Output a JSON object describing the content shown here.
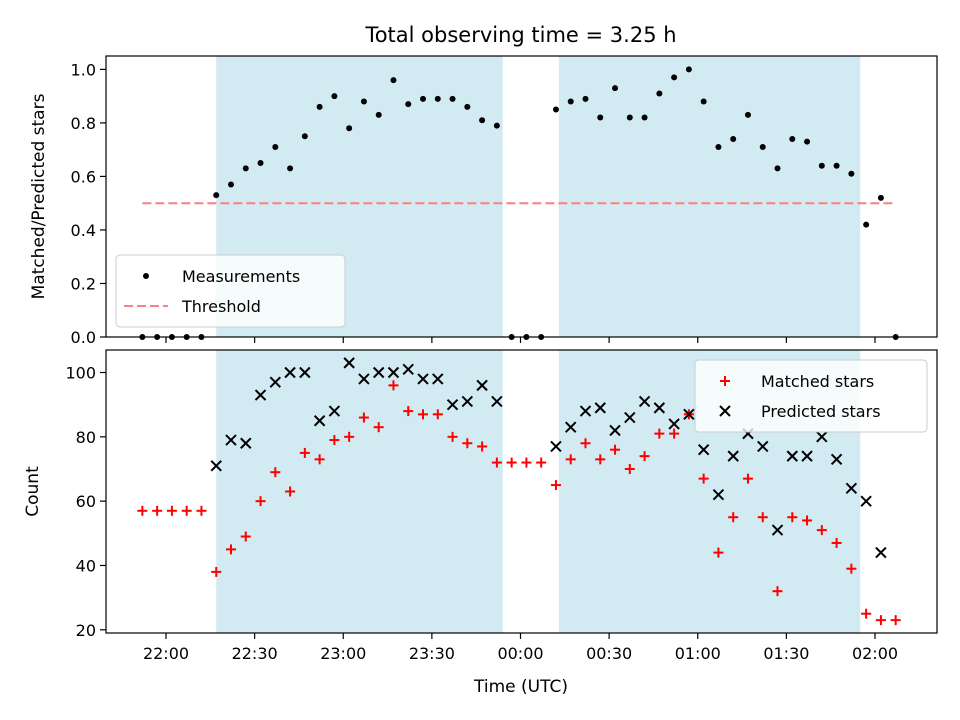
{
  "chart_data": {
    "title": "Total observing time = 3.25 h",
    "xlabel": "Time (UTC)",
    "xtick_labels": [
      "22:00",
      "22:30",
      "23:00",
      "23:30",
      "00:00",
      "00:30",
      "01:00",
      "01:30",
      "02:00"
    ],
    "shaded_intervals": [
      [
        "22:17",
        "23:54"
      ],
      [
        "00:13",
        "01:55"
      ]
    ],
    "shade_color": "#add8e6",
    "charts": [
      {
        "type": "scatter",
        "ylabel": "Matched/Predicted stars",
        "ylim": [
          0,
          1.05
        ],
        "yticks": [
          "0.0",
          "0.2",
          "0.4",
          "0.6",
          "0.8",
          "1.0"
        ],
        "legend": "lower-left",
        "series": [
          {
            "name": "Measurements",
            "marker": "dot",
            "color": "#000000",
            "points": [
              [
                "21:52",
                0
              ],
              [
                "21:57",
                0
              ],
              [
                "22:02",
                0
              ],
              [
                "22:07",
                0
              ],
              [
                "22:12",
                0
              ],
              [
                "22:17",
                0.53
              ],
              [
                "22:22",
                0.57
              ],
              [
                "22:27",
                0.63
              ],
              [
                "22:32",
                0.65
              ],
              [
                "22:37",
                0.71
              ],
              [
                "22:42",
                0.63
              ],
              [
                "22:47",
                0.75
              ],
              [
                "22:52",
                0.86
              ],
              [
                "22:57",
                0.9
              ],
              [
                "23:02",
                0.78
              ],
              [
                "23:07",
                0.88
              ],
              [
                "23:12",
                0.83
              ],
              [
                "23:17",
                0.96
              ],
              [
                "23:22",
                0.87
              ],
              [
                "23:27",
                0.89
              ],
              [
                "23:32",
                0.89
              ],
              [
                "23:37",
                0.89
              ],
              [
                "23:42",
                0.86
              ],
              [
                "23:47",
                0.81
              ],
              [
                "23:52",
                0.79
              ],
              [
                "23:57",
                0
              ],
              [
                "00:02",
                0
              ],
              [
                "00:07",
                0
              ],
              [
                "00:12",
                0.85
              ],
              [
                "00:17",
                0.88
              ],
              [
                "00:22",
                0.89
              ],
              [
                "00:27",
                0.82
              ],
              [
                "00:32",
                0.93
              ],
              [
                "00:37",
                0.82
              ],
              [
                "00:42",
                0.82
              ],
              [
                "00:47",
                0.91
              ],
              [
                "00:52",
                0.97
              ],
              [
                "00:57",
                1.0
              ],
              [
                "01:02",
                0.88
              ],
              [
                "01:07",
                0.71
              ],
              [
                "01:12",
                0.74
              ],
              [
                "01:17",
                0.83
              ],
              [
                "01:22",
                0.71
              ],
              [
                "01:27",
                0.63
              ],
              [
                "01:32",
                0.74
              ],
              [
                "01:37",
                0.73
              ],
              [
                "01:42",
                0.64
              ],
              [
                "01:47",
                0.64
              ],
              [
                "01:52",
                0.61
              ],
              [
                "01:57",
                0.42
              ],
              [
                "02:02",
                0.52
              ],
              [
                "02:07",
                0
              ]
            ]
          },
          {
            "name": "Threshold",
            "type": "line",
            "dash": true,
            "color": "#ff7f7f",
            "points": [
              [
                "21:52",
                0.5
              ],
              [
                "02:07",
                0.5
              ]
            ]
          }
        ]
      },
      {
        "type": "scatter",
        "ylabel": "Count",
        "ylim": [
          19,
          107
        ],
        "yticks": [
          "20",
          "40",
          "60",
          "80",
          "100"
        ],
        "legend": "upper-right",
        "series": [
          {
            "name": "Matched stars",
            "marker": "plus",
            "color": "#ff0000",
            "points": [
              [
                "21:52",
                57
              ],
              [
                "21:57",
                57
              ],
              [
                "22:02",
                57
              ],
              [
                "22:07",
                57
              ],
              [
                "22:12",
                57
              ],
              [
                "22:17",
                38
              ],
              [
                "22:22",
                45
              ],
              [
                "22:27",
                49
              ],
              [
                "22:32",
                60
              ],
              [
                "22:37",
                69
              ],
              [
                "22:42",
                63
              ],
              [
                "22:47",
                75
              ],
              [
                "22:52",
                73
              ],
              [
                "22:57",
                79
              ],
              [
                "23:02",
                80
              ],
              [
                "23:07",
                86
              ],
              [
                "23:12",
                83
              ],
              [
                "23:17",
                96
              ],
              [
                "23:22",
                88
              ],
              [
                "23:27",
                87
              ],
              [
                "23:32",
                87
              ],
              [
                "23:37",
                80
              ],
              [
                "23:42",
                78
              ],
              [
                "23:47",
                77
              ],
              [
                "23:52",
                72
              ],
              [
                "23:57",
                72
              ],
              [
                "00:02",
                72
              ],
              [
                "00:07",
                72
              ],
              [
                "00:12",
                65
              ],
              [
                "00:17",
                73
              ],
              [
                "00:22",
                78
              ],
              [
                "00:27",
                73
              ],
              [
                "00:32",
                76
              ],
              [
                "00:37",
                70
              ],
              [
                "00:42",
                74
              ],
              [
                "00:47",
                81
              ],
              [
                "00:52",
                81
              ],
              [
                "00:57",
                87
              ],
              [
                "01:02",
                67
              ],
              [
                "01:07",
                44
              ],
              [
                "01:12",
                55
              ],
              [
                "01:17",
                67
              ],
              [
                "01:22",
                55
              ],
              [
                "01:27",
                32
              ],
              [
                "01:32",
                55
              ],
              [
                "01:37",
                54
              ],
              [
                "01:42",
                51
              ],
              [
                "01:47",
                47
              ],
              [
                "01:52",
                39
              ],
              [
                "01:57",
                25
              ],
              [
                "02:02",
                23
              ],
              [
                "02:07",
                23
              ]
            ]
          },
          {
            "name": "Predicted stars",
            "marker": "x",
            "color": "#000000",
            "points": [
              [
                "22:17",
                71
              ],
              [
                "22:22",
                79
              ],
              [
                "22:27",
                78
              ],
              [
                "22:32",
                93
              ],
              [
                "22:37",
                97
              ],
              [
                "22:42",
                100
              ],
              [
                "22:47",
                100
              ],
              [
                "22:52",
                85
              ],
              [
                "22:57",
                88
              ],
              [
                "23:02",
                103
              ],
              [
                "23:07",
                98
              ],
              [
                "23:12",
                100
              ],
              [
                "23:17",
                100
              ],
              [
                "23:22",
                101
              ],
              [
                "23:27",
                98
              ],
              [
                "23:32",
                98
              ],
              [
                "23:37",
                90
              ],
              [
                "23:42",
                91
              ],
              [
                "23:47",
                96
              ],
              [
                "23:52",
                91
              ],
              [
                "00:12",
                77
              ],
              [
                "00:17",
                83
              ],
              [
                "00:22",
                88
              ],
              [
                "00:27",
                89
              ],
              [
                "00:32",
                82
              ],
              [
                "00:37",
                86
              ],
              [
                "00:42",
                91
              ],
              [
                "00:47",
                89
              ],
              [
                "00:52",
                84
              ],
              [
                "00:57",
                87
              ],
              [
                "01:02",
                76
              ],
              [
                "01:07",
                62
              ],
              [
                "01:12",
                74
              ],
              [
                "01:17",
                81
              ],
              [
                "01:22",
                77
              ],
              [
                "01:27",
                51
              ],
              [
                "01:32",
                74
              ],
              [
                "01:37",
                74
              ],
              [
                "01:42",
                80
              ],
              [
                "01:47",
                73
              ],
              [
                "01:52",
                64
              ],
              [
                "01:57",
                60
              ],
              [
                "02:02",
                44
              ]
            ]
          }
        ]
      }
    ]
  }
}
